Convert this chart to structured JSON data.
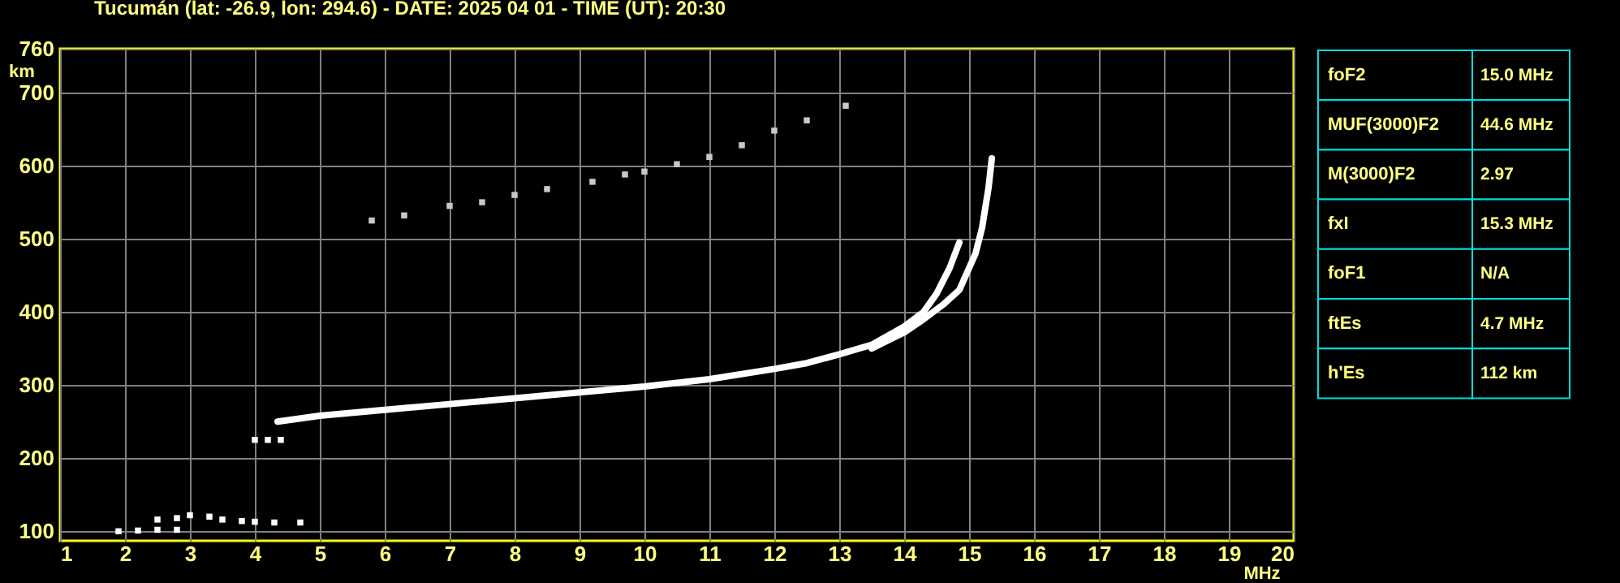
{
  "chart_data": {
    "type": "line",
    "title": "Tucumán (lat: -26.9, lon: 294.6) - DATE: 2025 04 01 - TIME (UT): 20:30",
    "xlabel": "MHz",
    "ylabel": "km",
    "xlim": [
      1,
      20
    ],
    "ylim": [
      87,
      760
    ],
    "xticks": [
      1,
      2,
      3,
      4,
      5,
      6,
      7,
      8,
      9,
      10,
      11,
      12,
      13,
      14,
      15,
      16,
      17,
      18,
      19,
      20
    ],
    "yticks": [
      100,
      200,
      300,
      400,
      500,
      600,
      700,
      760
    ],
    "grid": true,
    "line_style": "solid",
    "series": [
      {
        "color": "#ffffff",
        "x": [
          4.35,
          5,
          6,
          7,
          8,
          9,
          10,
          11,
          12,
          12.5,
          13,
          13.5,
          14,
          14.3,
          14.5,
          14.7,
          14.85
        ],
        "values": [
          250,
          258,
          266,
          274,
          282,
          290,
          298,
          308,
          322,
          330,
          342,
          355,
          380,
          400,
          425,
          460,
          495
        ]
      },
      {
        "color": "#ffffff",
        "x": [
          13.5,
          14,
          14.3,
          14.6,
          14.85,
          15.1,
          15.2,
          15.3,
          15.35
        ],
        "values": [
          350,
          372,
          390,
          410,
          430,
          480,
          515,
          570,
          610
        ]
      },
      {
        "type": "scatter",
        "marker": "square",
        "color": "#ffffff",
        "x": [
          1.9,
          2.2,
          2.5,
          2.8,
          2.5,
          2.8,
          3,
          3.3,
          3.5,
          3.8,
          4,
          4.3,
          4.7,
          4,
          4.2,
          4.4
        ],
        "values": [
          100,
          101,
          102,
          102,
          116,
          118,
          122,
          120,
          116,
          114,
          113,
          112,
          112,
          225,
          225,
          225
        ]
      },
      {
        "type": "scatter",
        "marker": "square",
        "color": "#c8c8c8",
        "x": [
          5.8,
          6.3,
          7,
          7.5,
          8,
          8.5,
          9.2,
          9.7,
          10,
          10.5,
          11,
          11.5,
          12,
          12.5,
          13.1
        ],
        "values": [
          525,
          532,
          545,
          550,
          560,
          568,
          578,
          588,
          592,
          602,
          612,
          628,
          648,
          662,
          682
        ]
      }
    ],
    "annotations": [
      "foF2",
      "15.0 MHz",
      "MUF(3000)F2",
      "44.6 MHz",
      "M(3000)F2",
      "2.97",
      "fxI",
      "15.3 MHz",
      "foF1",
      "N/A",
      "ftEs",
      "4.7 MHz",
      "h'Es",
      "112 km"
    ]
  }
}
